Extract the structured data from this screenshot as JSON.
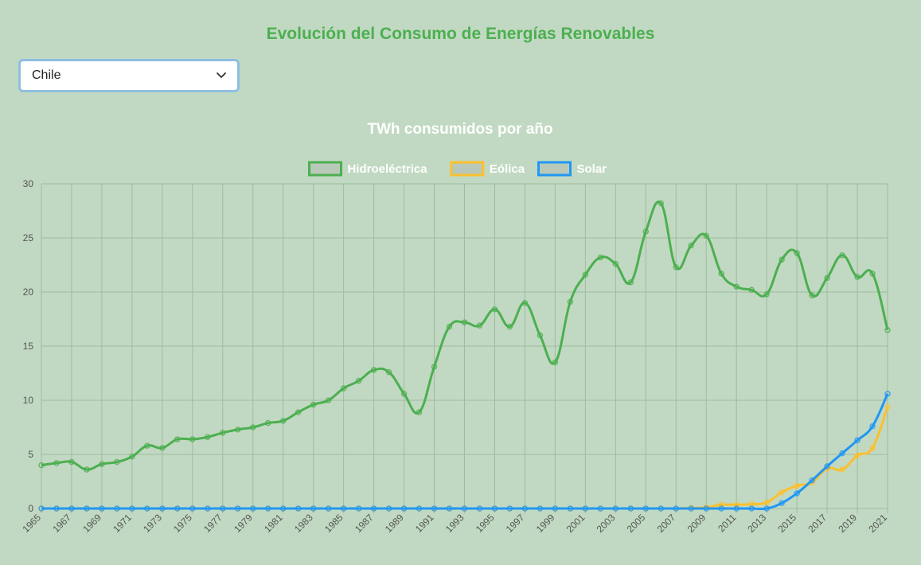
{
  "header": {
    "title": "Evolución del Consumo de Energías Renovables"
  },
  "country_select": {
    "value": "Chile",
    "icon": "chevron-down-icon"
  },
  "chart_data": {
    "type": "line",
    "title": "TWh consumidos por año",
    "legend_position": "top",
    "grid": true,
    "xlabel": "",
    "ylabel": "",
    "ylim": [
      0,
      30
    ],
    "y_ticks": [
      0,
      5,
      10,
      15,
      20,
      25,
      30
    ],
    "x_tick_labels": [
      "1965",
      "1967",
      "1969",
      "1971",
      "1973",
      "1975",
      "1977",
      "1979",
      "1981",
      "1983",
      "1985",
      "1987",
      "1989",
      "1991",
      "1993",
      "1995",
      "1997",
      "1999",
      "2001",
      "2003",
      "2005",
      "2007",
      "2009",
      "2011",
      "2013",
      "2015",
      "2017",
      "2019",
      "2021"
    ],
    "x": [
      1965,
      1966,
      1967,
      1968,
      1969,
      1970,
      1971,
      1972,
      1973,
      1974,
      1975,
      1976,
      1977,
      1978,
      1979,
      1980,
      1981,
      1982,
      1983,
      1984,
      1985,
      1986,
      1987,
      1988,
      1989,
      1990,
      1991,
      1992,
      1993,
      1994,
      1995,
      1996,
      1997,
      1998,
      1999,
      2000,
      2001,
      2002,
      2003,
      2004,
      2005,
      2006,
      2007,
      2008,
      2009,
      2010,
      2011,
      2012,
      2013,
      2014,
      2015,
      2016,
      2017,
      2018,
      2019,
      2020,
      2021
    ],
    "series": [
      {
        "name": "Hidroeléctrica",
        "color": "#4caf50",
        "values": [
          4.0,
          4.2,
          4.3,
          3.6,
          4.1,
          4.3,
          4.8,
          5.8,
          5.6,
          6.4,
          6.4,
          6.6,
          7.0,
          7.3,
          7.5,
          7.9,
          8.1,
          8.9,
          9.6,
          10.0,
          11.1,
          11.8,
          12.8,
          12.6,
          10.6,
          8.9,
          13.1,
          16.8,
          17.2,
          16.9,
          18.4,
          16.8,
          19.0,
          16.0,
          13.5,
          19.1,
          21.6,
          23.2,
          22.6,
          20.9,
          25.6,
          28.2,
          22.3,
          24.3,
          25.2,
          21.7,
          20.5,
          20.2,
          19.8,
          23.0,
          23.6,
          19.7,
          21.3,
          23.4,
          21.4,
          21.7,
          16.5
        ]
      },
      {
        "name": "Eólica",
        "color": "#fbc02d",
        "values": [
          0,
          0,
          0,
          0,
          0,
          0,
          0,
          0,
          0,
          0,
          0,
          0,
          0,
          0,
          0,
          0,
          0,
          0,
          0,
          0,
          0,
          0,
          0,
          0,
          0,
          0,
          0,
          0,
          0,
          0,
          0,
          0,
          0,
          0,
          0,
          0,
          0,
          0,
          0,
          0,
          0,
          0,
          0,
          0.05,
          0.1,
          0.35,
          0.35,
          0.4,
          0.55,
          1.5,
          2.1,
          2.4,
          3.7,
          3.6,
          4.9,
          5.6,
          9.4
        ]
      },
      {
        "name": "Solar",
        "color": "#2196f3",
        "values": [
          0,
          0,
          0,
          0,
          0,
          0,
          0,
          0,
          0,
          0,
          0,
          0,
          0,
          0,
          0,
          0,
          0,
          0,
          0,
          0,
          0,
          0,
          0,
          0,
          0,
          0,
          0,
          0,
          0,
          0,
          0,
          0,
          0,
          0,
          0,
          0,
          0,
          0,
          0,
          0,
          0,
          0,
          0,
          0,
          0,
          0,
          0,
          0,
          0,
          0.5,
          1.4,
          2.6,
          3.9,
          5.1,
          6.3,
          7.6,
          10.6
        ]
      }
    ]
  }
}
